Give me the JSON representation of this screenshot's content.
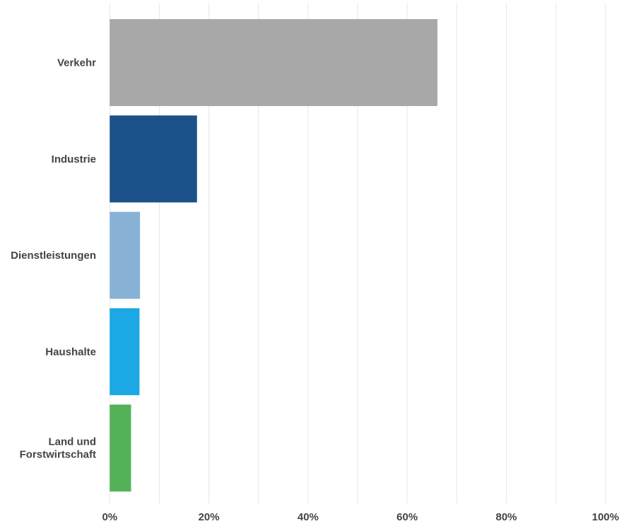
{
  "chart_data": {
    "type": "bar",
    "orientation": "horizontal",
    "categories": [
      "Verkehr",
      "Industrie",
      "Dienstleistungen",
      "Haushalte",
      "Land und Forstwirtschaft"
    ],
    "category_lines": [
      [
        "Verkehr"
      ],
      [
        "Industrie"
      ],
      [
        "Dienstleistungen"
      ],
      [
        "Haushalte"
      ],
      [
        "Land und",
        "Forstwirtschaft"
      ]
    ],
    "values": [
      66.1,
      17.6,
      6.1,
      6.0,
      4.3
    ],
    "colors": [
      "#a7a8a7",
      "#1a5189",
      "#87b2d5",
      "#1ba8e4",
      "#53b158"
    ],
    "xlim": [
      0,
      100
    ],
    "xticks": [
      0,
      20,
      40,
      60,
      80,
      100
    ],
    "xtick_labels": [
      "0%",
      "20%",
      "40%",
      "60%",
      "80%",
      "100%"
    ],
    "grid": "vertical, every 10%",
    "title": "",
    "xlabel": "",
    "ylabel": ""
  }
}
